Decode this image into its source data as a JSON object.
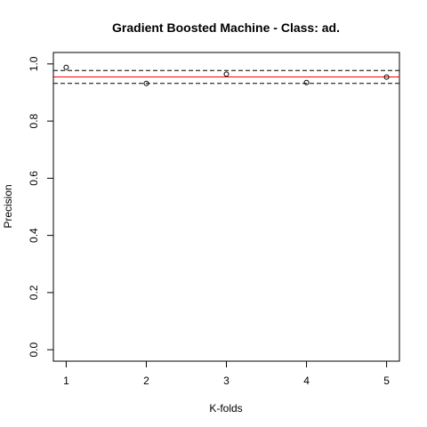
{
  "chart_data": {
    "type": "scatter",
    "title": "Gradient Boosted Machine - Class: ad.",
    "xlabel": "K-folds",
    "ylabel": "Precision",
    "x": [
      1,
      2,
      3,
      4,
      5
    ],
    "y": [
      0.988,
      0.932,
      0.964,
      0.935,
      0.954
    ],
    "xlim": [
      0.84,
      5.16
    ],
    "ylim": [
      -0.04,
      1.04
    ],
    "xticks": [
      "1",
      "2",
      "3",
      "4",
      "5"
    ],
    "yticks": [
      "0.0",
      "0.2",
      "0.4",
      "0.6",
      "0.8",
      "1.0"
    ],
    "reference_lines": [
      {
        "kind": "mean",
        "value": 0.9546,
        "color": "#ff0000",
        "style": "solid"
      },
      {
        "kind": "upper",
        "value": 0.977,
        "color": "#000000",
        "style": "dashed"
      },
      {
        "kind": "lower",
        "value": 0.932,
        "color": "#000000",
        "style": "dashed"
      }
    ],
    "grid": false,
    "legend": "none"
  }
}
